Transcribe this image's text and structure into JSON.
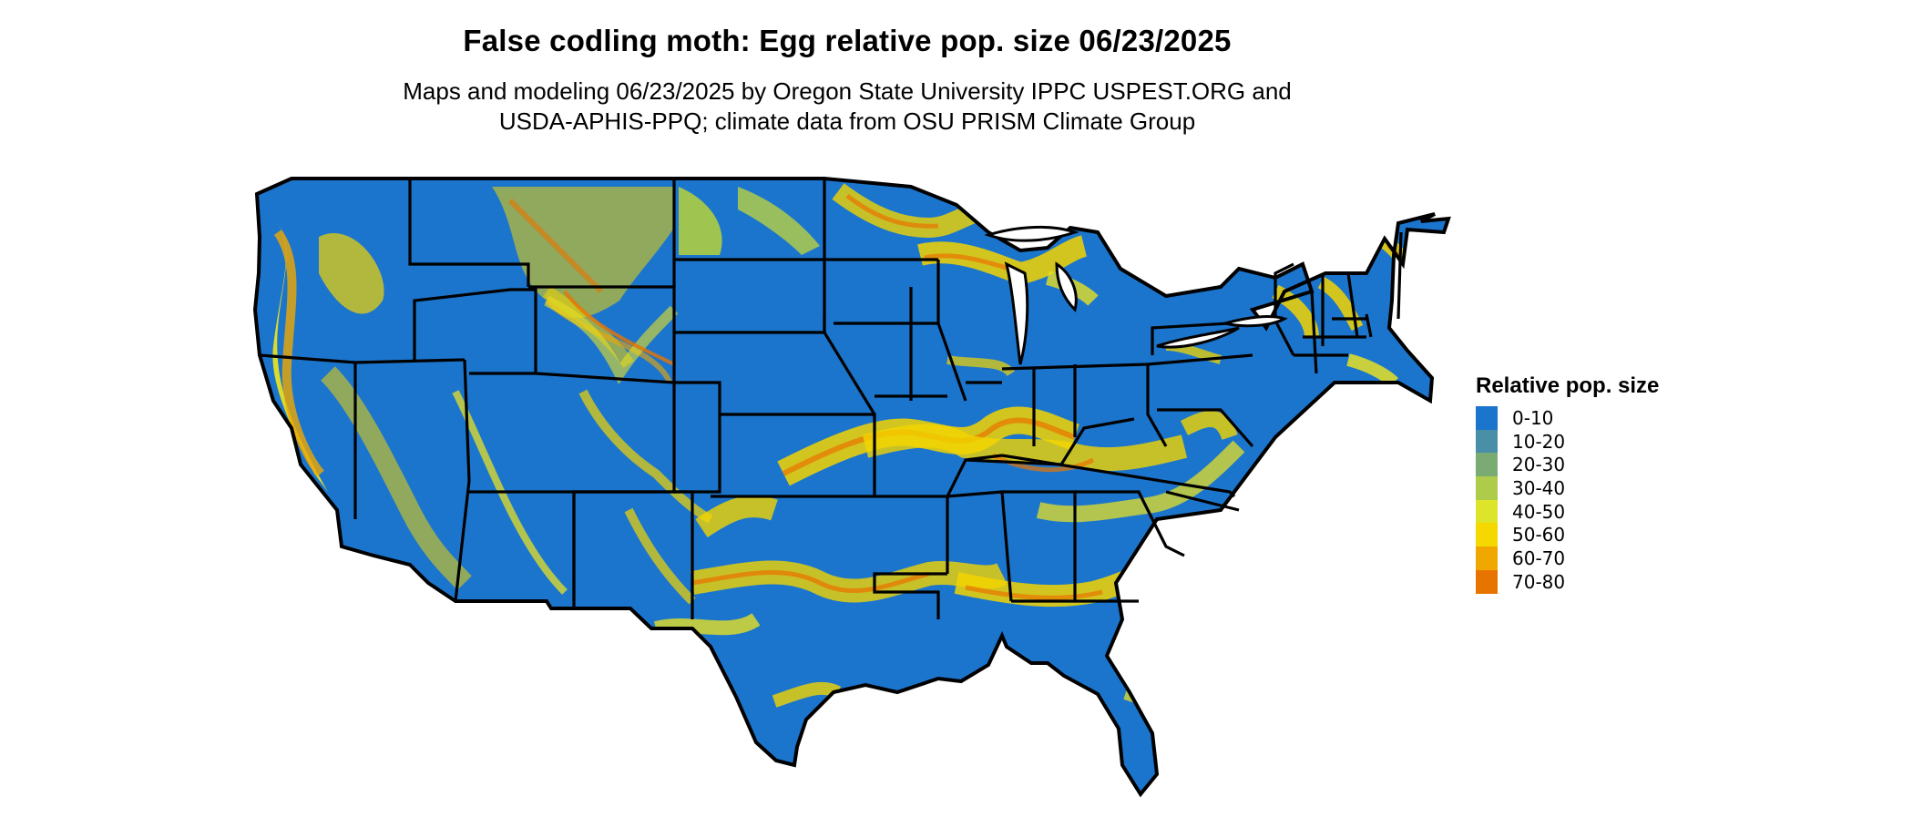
{
  "map": {
    "title": "False codling moth: Egg relative pop. size 06/23/2025",
    "subtitle_lines": [
      "Maps and modeling 06/23/2025 by Oregon State University IPPC USPEST.ORG and",
      "USDA-APHIS-PPQ; climate data from OSU PRISM Climate Group"
    ],
    "colors": {
      "base": "#1c75cc",
      "low": "#b6d43a",
      "mid": "#f2d400",
      "high": "#e57a00",
      "border": "#000000"
    }
  },
  "legend": {
    "title": "Relative pop. size",
    "items": [
      {
        "label": "0-10",
        "color": "#1c75cc"
      },
      {
        "label": "10-20",
        "color": "#4a8fa8"
      },
      {
        "label": "20-30",
        "color": "#7aab73"
      },
      {
        "label": "30-40",
        "color": "#aecb4a"
      },
      {
        "label": "40-50",
        "color": "#dde52a"
      },
      {
        "label": "50-60",
        "color": "#f5d800"
      },
      {
        "label": "60-70",
        "color": "#f0a800"
      },
      {
        "label": "70-80",
        "color": "#e87400"
      }
    ]
  }
}
